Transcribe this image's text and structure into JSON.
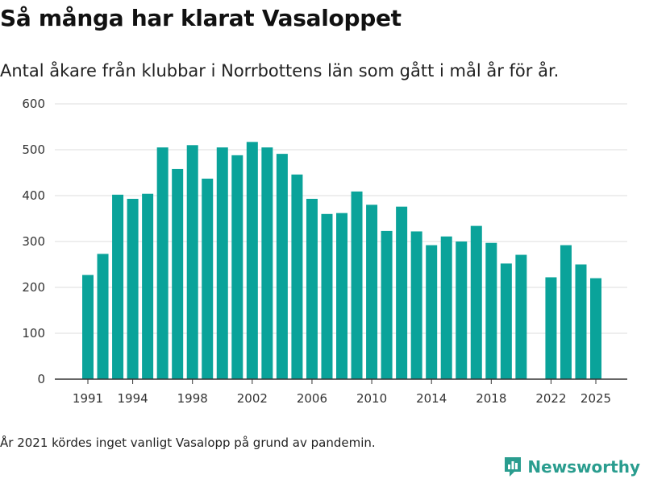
{
  "colors": {
    "bar": "#0aa39a",
    "grid": "#dddddd",
    "axis": "#333333",
    "brand": "#2a9d8f"
  },
  "footnote": "År 2021 kördes inget vanligt Vasalopp på grund av pandemin.",
  "brand": {
    "name": "Newsworthy",
    "icon": "newsworthy-logo-icon"
  },
  "chart_data": {
    "type": "bar",
    "title": "Så många har klarat Vasaloppet",
    "subtitle": "Antal åkare från klubbar i Norrbottens län som gått i mål år för år.",
    "xlabel": "",
    "ylabel": "",
    "ylim": [
      0,
      600
    ],
    "yticks": [
      0,
      100,
      200,
      300,
      400,
      500,
      600
    ],
    "xtick_labels": [
      "1991",
      "1994",
      "1998",
      "2002",
      "2006",
      "2010",
      "2014",
      "2018",
      "2022",
      "2025"
    ],
    "categories": [
      1991,
      1992,
      1993,
      1994,
      1995,
      1996,
      1997,
      1998,
      1999,
      2000,
      2001,
      2002,
      2003,
      2004,
      2005,
      2006,
      2007,
      2008,
      2009,
      2010,
      2011,
      2012,
      2013,
      2014,
      2015,
      2016,
      2017,
      2018,
      2019,
      2020,
      2021,
      2022,
      2023,
      2024,
      2025
    ],
    "values": [
      227,
      273,
      402,
      393,
      404,
      505,
      458,
      510,
      437,
      505,
      488,
      517,
      505,
      491,
      446,
      393,
      360,
      362,
      409,
      380,
      323,
      376,
      322,
      292,
      311,
      300,
      334,
      297,
      252,
      271,
      null,
      222,
      292,
      250,
      220
    ],
    "grid": true,
    "legend": "none"
  }
}
